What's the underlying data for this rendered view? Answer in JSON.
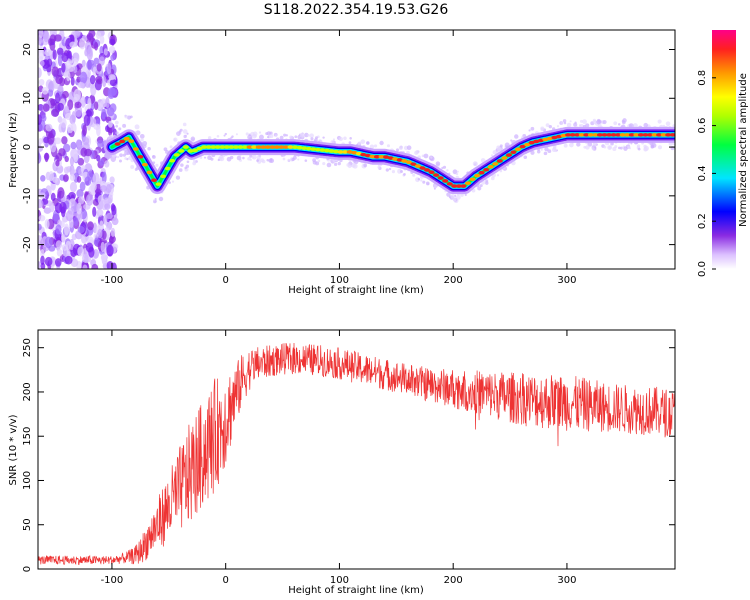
{
  "title": "S118.2022.354.19.53.G26",
  "chart_data": [
    {
      "type": "heatmap",
      "xlabel": "Height of straight line (km)",
      "ylabel": "Frequency (Hz)",
      "xlim": [
        -165,
        395
      ],
      "ylim": [
        -25,
        24
      ],
      "x_ticks": [
        -100,
        0,
        100,
        200,
        300
      ],
      "x_tick_labels": [
        "-100",
        "0",
        "100",
        "200",
        "300"
      ],
      "y_ticks": [
        -20,
        -10,
        0,
        10,
        20
      ],
      "y_tick_labels": [
        "-20",
        "-10",
        "0",
        "10",
        "20"
      ],
      "colorbar": {
        "label": "Normalized spectral amplitude",
        "range": [
          0,
          1
        ],
        "ticks": [
          0.0,
          0.2,
          0.4,
          0.6,
          0.8
        ],
        "tick_labels": [
          "0.0",
          "0.2",
          "0.4",
          "0.6",
          "0.8"
        ],
        "colormap": "rainbow"
      },
      "noise_region_x": [
        -165,
        -100
      ],
      "ridge": {
        "x": [
          -100,
          -92,
          -85,
          -80,
          -75,
          -70,
          -65,
          -60,
          -55,
          -50,
          -45,
          -40,
          -35,
          -30,
          -20,
          -10,
          0,
          20,
          40,
          60,
          80,
          100,
          110,
          120,
          130,
          140,
          150,
          160,
          170,
          180,
          190,
          200,
          210,
          220,
          230,
          240,
          250,
          260,
          270,
          280,
          290,
          300,
          320,
          340,
          360,
          380,
          395
        ],
        "y": [
          0,
          1,
          2,
          0,
          -2,
          -4,
          -6,
          -8,
          -6,
          -4,
          -2,
          -1,
          0,
          -1,
          0,
          0,
          0,
          0,
          0,
          0,
          -0.5,
          -1,
          -1,
          -1.5,
          -2,
          -2,
          -2.5,
          -3,
          -4,
          -5,
          -6.5,
          -8,
          -8,
          -6,
          -4.5,
          -3,
          -1.5,
          0,
          1,
          1.5,
          2,
          2.5,
          2.5,
          2.5,
          2.5,
          2.5,
          2.5
        ]
      }
    },
    {
      "type": "line",
      "xlabel": "Height of straight line (km)",
      "ylabel": "SNR (10 * v/v)",
      "xlim": [
        -165,
        395
      ],
      "ylim": [
        0,
        270
      ],
      "x_ticks": [
        -100,
        0,
        100,
        200,
        300
      ],
      "x_tick_labels": [
        "-100",
        "0",
        "100",
        "200",
        "300"
      ],
      "y_ticks": [
        0,
        50,
        100,
        150,
        200,
        250
      ],
      "y_tick_labels": [
        "0",
        "50",
        "100",
        "150",
        "200",
        "250"
      ],
      "series": [
        {
          "color": "#ee3333",
          "x": [
            -165,
            -150,
            -120,
            -100,
            -90,
            -80,
            -75,
            -70,
            -65,
            -60,
            -55,
            -50,
            -45,
            -40,
            -35,
            -30,
            -25,
            -20,
            -15,
            -10,
            -5,
            0,
            5,
            10,
            15,
            20,
            25,
            30,
            40,
            50,
            60,
            80,
            100,
            120,
            140,
            160,
            180,
            200,
            220,
            240,
            260,
            280,
            300,
            320,
            340,
            360,
            380,
            395
          ],
          "y": [
            10,
            10,
            10,
            10,
            12,
            15,
            20,
            30,
            40,
            50,
            60,
            70,
            80,
            90,
            100,
            110,
            120,
            130,
            140,
            150,
            160,
            170,
            185,
            200,
            215,
            225,
            230,
            232,
            235,
            237,
            238,
            236,
            232,
            226,
            220,
            214,
            208,
            204,
            200,
            196,
            192,
            190,
            188,
            185,
            182,
            180,
            178,
            175
          ],
          "noise_amplitude": [
            5,
            5,
            5,
            5,
            6,
            10,
            15,
            20,
            25,
            30,
            35,
            40,
            45,
            50,
            55,
            60,
            60,
            60,
            65,
            65,
            60,
            55,
            45,
            35,
            30,
            25,
            20,
            20,
            18,
            18,
            18,
            18,
            18,
            18,
            18,
            18,
            20,
            22,
            25,
            28,
            30,
            32,
            32,
            30,
            28,
            28,
            28,
            28
          ]
        }
      ]
    }
  ]
}
